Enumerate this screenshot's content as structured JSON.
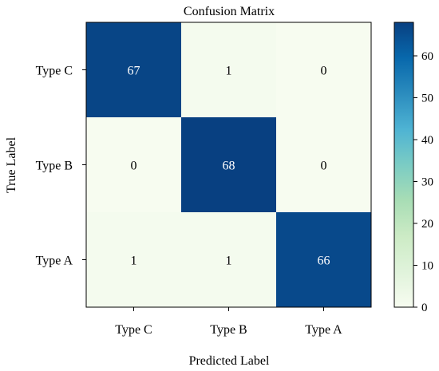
{
  "chart_data": {
    "type": "heatmap",
    "title": "Confusion Matrix",
    "xlabel": "Predicted Label",
    "ylabel": "True Label",
    "x_categories": [
      "Type C",
      "Type B",
      "Type A"
    ],
    "y_categories": [
      "Type C",
      "Type B",
      "Type A"
    ],
    "matrix": [
      [
        67,
        1,
        0
      ],
      [
        0,
        68,
        0
      ],
      [
        1,
        1,
        66
      ]
    ],
    "colorbar": {
      "min": 0,
      "max": 68,
      "ticks": [
        0,
        10,
        20,
        30,
        40,
        50,
        60
      ],
      "colormap": "GnBu"
    },
    "colors": {
      "low": "#f7fcf0",
      "high": "#084081",
      "text_on_dark": "#ffffff",
      "text_on_light": "#000000"
    }
  }
}
